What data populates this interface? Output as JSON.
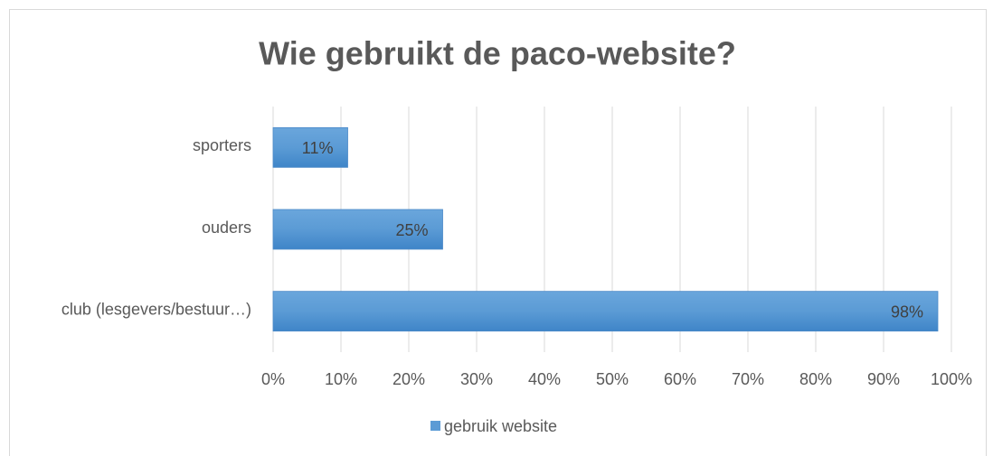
{
  "chart_data": {
    "type": "bar",
    "orientation": "horizontal",
    "title": "Wie gebruikt de paco-website?",
    "categories": [
      "sporters",
      "ouders",
      "club (lesgevers/bestuur…)"
    ],
    "series": [
      {
        "name": "gebruik website",
        "color": "#5b9bd5",
        "values": [
          11,
          25,
          98
        ],
        "value_labels": [
          "11%",
          "25%",
          "98%"
        ]
      }
    ],
    "xlim": [
      0,
      100
    ],
    "xticks": [
      {
        "value": 0,
        "label": "0%"
      },
      {
        "value": 10,
        "label": "10%"
      },
      {
        "value": 20,
        "label": "20%"
      },
      {
        "value": 30,
        "label": "30%"
      },
      {
        "value": 40,
        "label": "40%"
      },
      {
        "value": 50,
        "label": "50%"
      },
      {
        "value": 60,
        "label": "60%"
      },
      {
        "value": 70,
        "label": "70%"
      },
      {
        "value": 80,
        "label": "80%"
      },
      {
        "value": 90,
        "label": "90%"
      },
      {
        "value": 100,
        "label": "100%"
      }
    ],
    "grid": true,
    "legend": "bottom"
  }
}
